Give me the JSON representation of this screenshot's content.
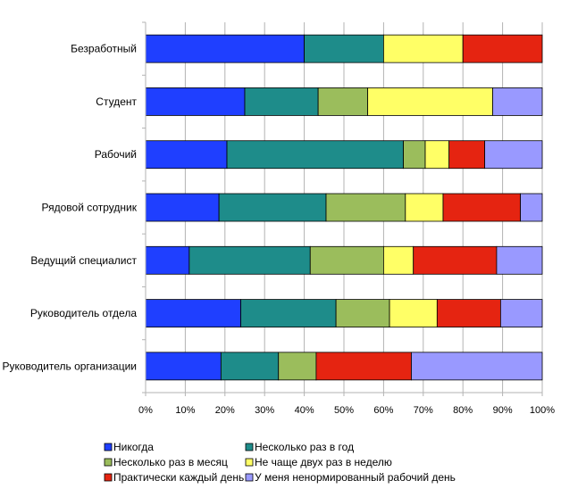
{
  "chart_data": {
    "type": "bar",
    "orientation": "horizontal",
    "stacked": "percent",
    "categories": [
      "Безработный",
      "Студент",
      "Рабочий",
      "Рядовой сотрудник",
      "Ведущий специалист",
      "Руководитель отдела",
      "Руководитель организации"
    ],
    "series": [
      {
        "name": "Никогда",
        "color": "#1f3fff",
        "values": [
          40,
          25,
          20.5,
          18.5,
          11,
          24,
          19
        ]
      },
      {
        "name": "Несколько раз в год",
        "color": "#1e8c8a",
        "values": [
          20,
          18.5,
          44.5,
          27,
          30.5,
          24,
          14.5
        ]
      },
      {
        "name": "Несколько раз в месяц",
        "color": "#9bbd5c",
        "values": [
          0,
          12.5,
          5.5,
          20,
          18.5,
          13.5,
          9.5
        ]
      },
      {
        "name": "Не чаще двух раз в неделю",
        "color": "#ffff66",
        "values": [
          20,
          31.5,
          6,
          9.5,
          7.5,
          12,
          0
        ]
      },
      {
        "name": "Практически каждый день",
        "color": "#e52411",
        "values": [
          20,
          0,
          9,
          19.5,
          21,
          16,
          24
        ]
      },
      {
        "name": "У меня ненормированный рабочий день",
        "color": "#9999ff",
        "values": [
          0,
          12.5,
          14.5,
          5.5,
          11.5,
          10.5,
          33
        ]
      }
    ],
    "xlim": [
      0,
      100
    ],
    "xticks": [
      "0%",
      "10%",
      "20%",
      "30%",
      "40%",
      "50%",
      "60%",
      "70%",
      "80%",
      "90%",
      "100%"
    ],
    "grid": true,
    "legend_position": "bottom"
  }
}
